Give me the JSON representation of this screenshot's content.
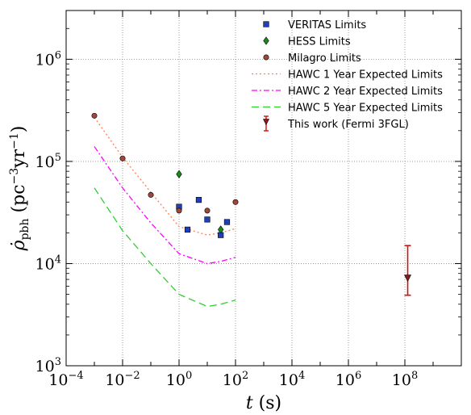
{
  "chart_data": {
    "type": "scatter",
    "xlabel": "t (s)",
    "ylabel": "ρ̇pbh (pc⁻³yr⁻¹)",
    "x_scale": "log",
    "y_scale": "log",
    "xlim": [
      0.0001,
      10000000000.0
    ],
    "ylim": [
      1000,
      3000000
    ],
    "grid": true,
    "legend_position": "top-right",
    "x_ticks": [
      0.0001,
      0.01,
      1,
      100,
      10000,
      1000000,
      100000000
    ],
    "x_tick_labels": [
      {
        "base": "10",
        "exp": "−4"
      },
      {
        "base": "10",
        "exp": "−2"
      },
      {
        "base": "10",
        "exp": "0"
      },
      {
        "base": "10",
        "exp": "2"
      },
      {
        "base": "10",
        "exp": "4"
      },
      {
        "base": "10",
        "exp": "6"
      },
      {
        "base": "10",
        "exp": "8"
      }
    ],
    "y_ticks": [
      1000,
      10000,
      100000,
      1000000
    ],
    "y_tick_labels": [
      {
        "base": "10",
        "exp": "3"
      },
      {
        "base": "10",
        "exp": "4"
      },
      {
        "base": "10",
        "exp": "5"
      },
      {
        "base": "10",
        "exp": "6"
      }
    ],
    "series": [
      {
        "name": "VERITAS Limits",
        "kind": "points",
        "marker": "square",
        "color": "#1f3fbf",
        "points": [
          [
            1,
            36000
          ],
          [
            2,
            21500
          ],
          [
            5,
            42000
          ],
          [
            10,
            27000
          ],
          [
            30,
            19000
          ],
          [
            50,
            25500
          ]
        ]
      },
      {
        "name": "HESS Limits",
        "kind": "points",
        "marker": "diamond",
        "color": "#1a8a1a",
        "points": [
          [
            1,
            75000
          ],
          [
            30,
            21500
          ]
        ]
      },
      {
        "name": "Milagro Limits",
        "kind": "points",
        "marker": "circle",
        "color": "#a0463a",
        "points": [
          [
            0.001,
            280000
          ],
          [
            0.01,
            107000
          ],
          [
            0.1,
            47000
          ],
          [
            1,
            33000
          ],
          [
            10,
            33000
          ],
          [
            100,
            40000
          ]
        ]
      },
      {
        "name": "HAWC 1 Year Expected Limits",
        "kind": "line",
        "dash": "2,3",
        "color": "#ff7f50",
        "points": [
          [
            0.001,
            270000
          ],
          [
            0.01,
            110000
          ],
          [
            0.1,
            50000
          ],
          [
            1,
            23000
          ],
          [
            10,
            19000
          ],
          [
            30,
            20000
          ],
          [
            100,
            22000
          ]
        ]
      },
      {
        "name": "HAWC 2 Year Expected Limits",
        "kind": "line",
        "dash": "7,3,2,3",
        "color": "#ff00ff",
        "points": [
          [
            0.001,
            140000
          ],
          [
            0.01,
            55000
          ],
          [
            0.1,
            25000
          ],
          [
            1,
            12500
          ],
          [
            10,
            10000
          ],
          [
            30,
            10500
          ],
          [
            100,
            11500
          ]
        ]
      },
      {
        "name": "HAWC 5 Year Expected Limits",
        "kind": "line",
        "dash": "9,5",
        "color": "#33cc33",
        "points": [
          [
            0.001,
            55000
          ],
          [
            0.01,
            21000
          ],
          [
            0.1,
            10000
          ],
          [
            1,
            5000
          ],
          [
            10,
            3800
          ],
          [
            30,
            4000
          ],
          [
            100,
            4400
          ]
        ]
      },
      {
        "name": "This work (Fermi 3FGL)",
        "kind": "errorbar",
        "marker": "triangle-down",
        "color": "#cc1111",
        "marker_fill": "#8b1a1a",
        "points": [
          [
            126000000,
            7200
          ]
        ],
        "err_low": [
          4900
        ],
        "err_high": [
          15000
        ]
      }
    ]
  }
}
